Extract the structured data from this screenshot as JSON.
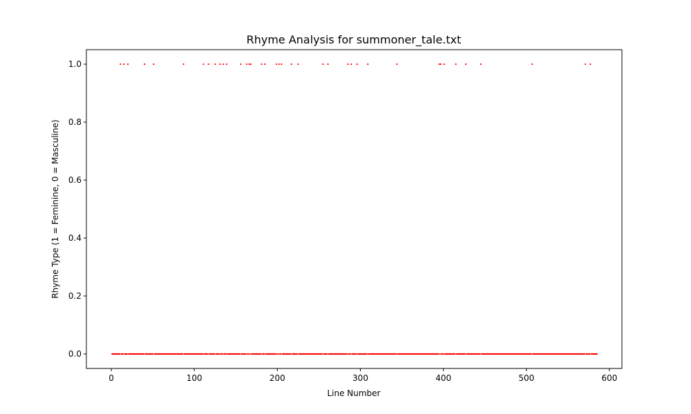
{
  "chart_data": {
    "type": "scatter",
    "title": "Rhyme Analysis for summoner_tale.txt",
    "xlabel": "Line Number",
    "ylabel": "Rhyme Type (1 = Feminine, 0 = Masculine)",
    "xlim": [
      -30,
      615
    ],
    "ylim": [
      -0.05,
      1.05
    ],
    "xticks": [
      0,
      100,
      200,
      300,
      400,
      500,
      600
    ],
    "yticks": [
      0.0,
      0.2,
      0.4,
      0.6,
      0.8,
      1.0
    ],
    "xtick_labels": [
      "0",
      "100",
      "200",
      "300",
      "400",
      "500",
      "600"
    ],
    "ytick_labels": [
      "0.0",
      "0.2",
      "0.4",
      "0.6",
      "0.8",
      "1.0"
    ],
    "marker_color": "#ff0000",
    "grid": false,
    "legend": "none",
    "n_lines": 585,
    "feminine_lines": [
      11,
      15,
      20,
      40,
      51,
      87,
      111,
      117,
      125,
      131,
      135,
      139,
      156,
      163,
      166,
      168,
      181,
      185,
      199,
      202,
      205,
      217,
      225,
      255,
      261,
      285,
      289,
      296,
      309,
      344,
      395,
      397,
      401,
      415,
      427,
      445,
      507,
      571,
      577
    ]
  }
}
